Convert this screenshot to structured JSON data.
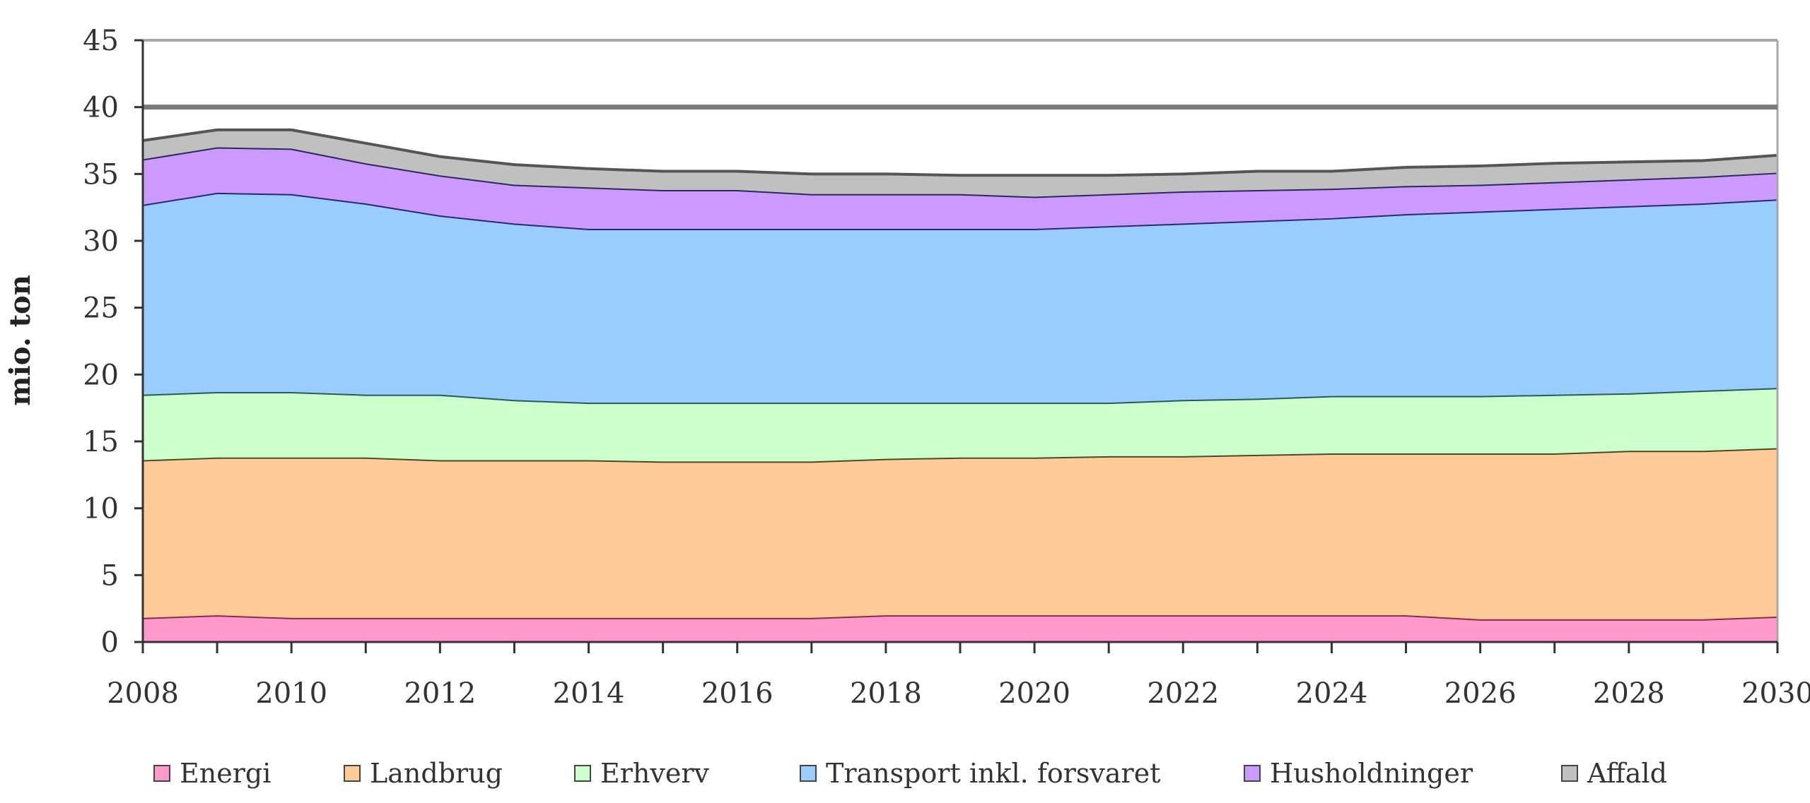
{
  "chart_data": {
    "type": "area",
    "stacked": true,
    "title": "",
    "xlabel": "",
    "ylabel": "mio. ton",
    "x": [
      2008,
      2009,
      2010,
      2011,
      2012,
      2013,
      2014,
      2015,
      2016,
      2017,
      2018,
      2019,
      2020,
      2021,
      2022,
      2023,
      2024,
      2025,
      2026,
      2027,
      2028,
      2029,
      2030
    ],
    "xticks": [
      "2008",
      "2010",
      "2012",
      "2014",
      "2016",
      "2018",
      "2020",
      "2022",
      "2024",
      "2026",
      "2028",
      "2030"
    ],
    "yticks": [
      "0",
      "5",
      "10",
      "15",
      "20",
      "25",
      "30",
      "35",
      "40",
      "45"
    ],
    "ylim": [
      0,
      45
    ],
    "reference_line": 40,
    "grid": false,
    "legend_position": "bottom",
    "series": [
      {
        "name": "Energi",
        "color": "#FF99CC",
        "line": "#8a2a4a",
        "values": [
          1.8,
          2.0,
          1.8,
          1.8,
          1.8,
          1.8,
          1.8,
          1.8,
          1.8,
          1.8,
          2.0,
          2.0,
          2.0,
          2.0,
          2.0,
          2.0,
          2.0,
          2.0,
          1.7,
          1.7,
          1.7,
          1.7,
          1.9
        ]
      },
      {
        "name": "Landbrug",
        "color": "#FFCC99",
        "line": "#4a4a2a",
        "values": [
          11.8,
          11.8,
          12.0,
          12.0,
          11.8,
          11.8,
          11.8,
          11.7,
          11.7,
          11.7,
          11.7,
          11.8,
          11.8,
          11.9,
          11.9,
          12.0,
          12.1,
          12.1,
          12.4,
          12.4,
          12.6,
          12.6,
          12.6
        ]
      },
      {
        "name": "Erhverv",
        "color": "#CCFFCC",
        "line": "#2a5a5a",
        "values": [
          4.9,
          4.9,
          4.9,
          4.7,
          4.9,
          4.5,
          4.3,
          4.4,
          4.4,
          4.4,
          4.2,
          4.1,
          4.1,
          4.0,
          4.2,
          4.2,
          4.3,
          4.3,
          4.3,
          4.4,
          4.3,
          4.5,
          4.5
        ]
      },
      {
        "name": "Transport inkl. forsvaret",
        "color": "#99CCFF",
        "line": "#2a2a6a",
        "values": [
          14.2,
          14.9,
          14.8,
          14.3,
          13.4,
          13.2,
          13.0,
          13.0,
          13.0,
          13.0,
          13.0,
          13.0,
          13.0,
          13.2,
          13.2,
          13.3,
          13.3,
          13.6,
          13.8,
          13.9,
          14.0,
          14.0,
          14.1
        ]
      },
      {
        "name": "Husholdninger",
        "color": "#CC99FF",
        "line": "#2a2a5a",
        "values": [
          3.4,
          3.4,
          3.4,
          3.0,
          3.0,
          2.9,
          3.1,
          2.9,
          2.9,
          2.6,
          2.6,
          2.6,
          2.4,
          2.4,
          2.4,
          2.3,
          2.2,
          2.1,
          2.0,
          2.0,
          2.0,
          2.0,
          2.0
        ]
      },
      {
        "name": "Affald",
        "color": "#C0C0C0",
        "line": "#555555",
        "values": [
          1.4,
          1.3,
          1.4,
          1.5,
          1.4,
          1.5,
          1.4,
          1.4,
          1.4,
          1.5,
          1.5,
          1.4,
          1.6,
          1.4,
          1.3,
          1.4,
          1.3,
          1.4,
          1.4,
          1.4,
          1.3,
          1.2,
          1.3
        ]
      }
    ]
  }
}
